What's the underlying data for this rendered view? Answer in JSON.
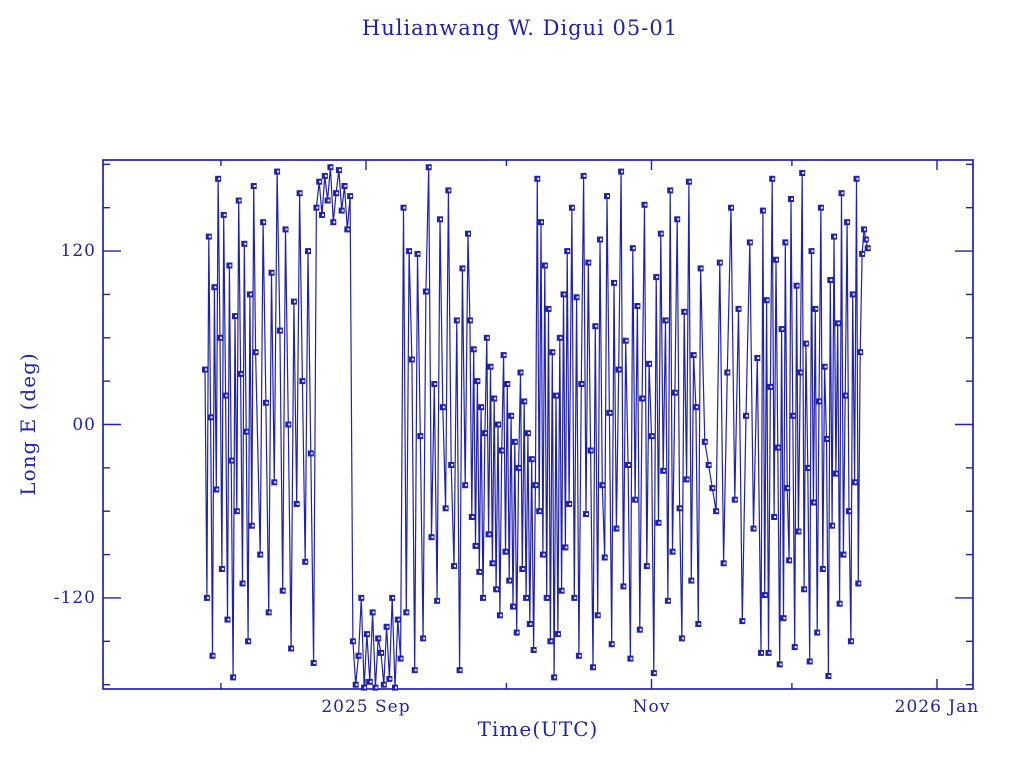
{
  "chart_data": {
    "type": "line",
    "title": "Hulianwang W. Digui 05-01",
    "xlabel": "Time(UTC)",
    "ylabel": "Long E (deg)",
    "line_color": "#2121b0",
    "background": "#ffffff",
    "marker": "filled-square-with-white-center-dot",
    "grid": "off",
    "legend": "none",
    "xlim": [
      0,
      185.9
    ],
    "ylim": [
      -183,
      183
    ],
    "x_axis_note": "t = days; 0 at left edge (early Jul 2025)",
    "x_major_ticks": [
      {
        "t": 56.2,
        "label": "2025 Sep"
      },
      {
        "t": 117.2,
        "label": "Nov"
      },
      {
        "t": 178.2,
        "label": "2026 Jan"
      }
    ],
    "x_minor_ticks": [
      25.2,
      86.2,
      147.2
    ],
    "y_major_ticks": [
      {
        "v": 120,
        "label": "120"
      },
      {
        "v": 0,
        "label": "00"
      },
      {
        "v": -120,
        "label": "-120"
      }
    ],
    "y_minor_ticks": [
      -180,
      -150,
      -90,
      -60,
      -30,
      30,
      60,
      90,
      150,
      180
    ],
    "series": [
      {
        "name": "longitude-east-deg",
        "segments": [
          {
            "t0": 21.8,
            "dt": 0.4,
            "lons": [
              38,
              -120,
              130,
              5,
              -160,
              95,
              -45,
              170,
              60,
              -100,
              145,
              20,
              -135,
              110,
              -25,
              -175,
              75,
              -60,
              155,
              35,
              -110,
              125,
              -5,
              -150,
              90,
              -70,
              165,
              50
            ]
          },
          {
            "t0": 33.6,
            "dt": 0.6,
            "lons": [
              -90,
              140,
              15,
              -130,
              105,
              -40,
              175,
              65,
              -115,
              135,
              0,
              -155,
              85,
              -55,
              160,
              30,
              -95,
              120,
              -20,
              -165
            ]
          },
          {
            "t0": 45.6,
            "dt": 0.6,
            "lons": [
              150,
              168,
              145,
              172,
              155,
              178,
              140,
              160,
              176,
              148,
              165,
              135,
              158
            ]
          },
          {
            "t0": 53.4,
            "dt": 0.6,
            "lons": [
              -150,
              -180,
              -160,
              -120,
              -182,
              -145,
              -178,
              -130,
              -182,
              -148,
              -158,
              -180,
              -140,
              -176,
              -120,
              -182,
              -135,
              -162
            ]
          },
          {
            "t0": 64.2,
            "dt": 0.6,
            "lons": [
              150,
              -130,
              120
            ]
          },
          {
            "t0": 66.0,
            "dt": 0.6,
            "lons": [
              45,
              -170,
              118,
              -8,
              -148,
              92,
              178,
              -78,
              28,
              -122,
              142,
              12,
              -58,
              162,
              -28,
              -98,
              72,
              -170,
              108,
              -42,
              132
            ]
          },
          {
            "t0": 78.4,
            "dt": 0.4,
            "lons": [
              72,
              -64,
              52,
              -84,
              30,
              -102,
              12,
              -120,
              -6,
              60,
              -76,
              40,
              -96,
              18,
              -114,
              0,
              -132,
              -18,
              48,
              -88,
              28,
              -108,
              6,
              -126,
              -12,
              -144,
              -30,
              36,
              -100,
              16,
              -120,
              -6,
              -138,
              -24,
              -156,
              -42,
              170,
              -60,
              140,
              -90,
              110,
              -120,
              80,
              -150,
              50,
              -175,
              20,
              -145,
              60,
              -115,
              90,
              -85,
              120,
              -55
            ]
          },
          {
            "t0": 100.2,
            "dt": 0.5,
            "lons": [
              150,
              -120,
              88,
              -160,
              28,
              172,
              -62,
              112,
              -18,
              -168,
              68,
              -132,
              128,
              -42,
              -92,
              158,
              8,
              -152,
              98,
              -72,
              38,
              175,
              -112,
              58,
              -28,
              -162,
              122,
              -52,
              82,
              -142,
              18,
              152,
              -98,
              42,
              -8,
              -172,
              102,
              -68,
              132,
              -32,
              72,
              -122,
              162,
              -88,
              22,
              142,
              -58,
              -148,
              78,
              -38,
              168,
              -108,
              48,
              12,
              -138,
              108
            ]
          },
          {
            "t0": 128.6,
            "dt": 0.8,
            "lons": [
              -12,
              -28,
              -44,
              -60,
              112,
              -96,
              36,
              150,
              -52,
              80,
              -136,
              6,
              126,
              -72,
              46,
              -158
            ]
          },
          {
            "t0": 141.0,
            "dt": 0.4,
            "lons": [
              148,
              -118,
              86,
              -158,
              26,
              170,
              -64,
              114,
              -16,
              -166,
              66,
              -134,
              126,
              -44,
              -94,
              156,
              6,
              -154,
              96,
              -74,
              36,
              174,
              -114,
              56,
              -30,
              -164,
              120,
              -54,
              80,
              -144,
              16,
              150,
              -100,
              40,
              -10,
              -174,
              100,
              -70,
              130,
              -34,
              70,
              -124,
              160,
              -90,
              20,
              140,
              -60,
              -150,
              90,
              -40,
              170,
              -110,
              50,
              118,
              135,
              128,
              122
            ]
          }
        ]
      }
    ]
  }
}
